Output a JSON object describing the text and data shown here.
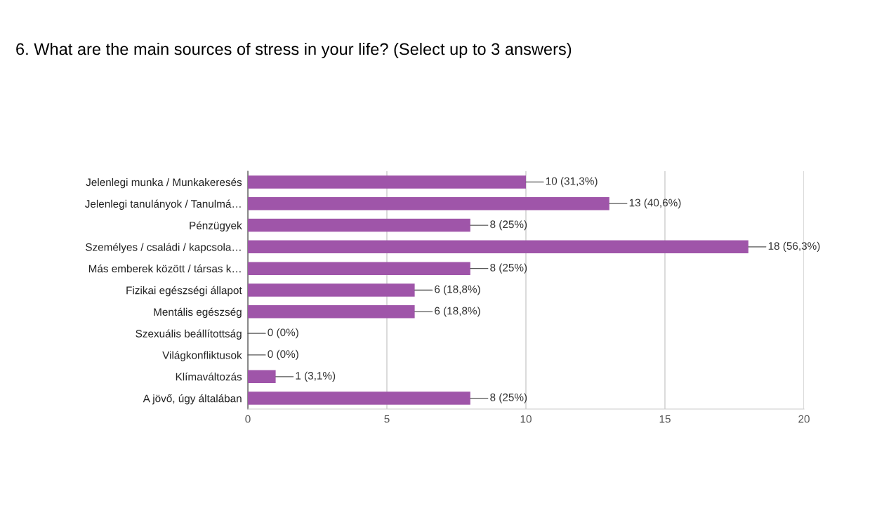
{
  "chart_data": {
    "type": "bar",
    "orientation": "horizontal",
    "title": "6. What are the main sources of stress in your life? (Select up to 3 answers)",
    "categories": [
      "Jelenlegi munka / Munkakeresés",
      "Jelenlegi tanulányok / Tanulmá…",
      "Pénzügyek",
      "Személyes / családi / kapcsola…",
      "Más emberek között / társas k…",
      "Fizikai egészségi állapot",
      "Mentális egészség",
      "Szexuális beállítottság",
      "Világkonfliktusok",
      "Klímaváltozás",
      "A jövő, úgy általában"
    ],
    "values": [
      10,
      13,
      8,
      18,
      8,
      6,
      6,
      0,
      0,
      1,
      8
    ],
    "value_labels": [
      "10 (31,3%)",
      "13 (40,6%)",
      "8 (25%)",
      "18 (56,3%)",
      "8 (25%)",
      "6 (18,8%)",
      "6 (18,8%)",
      "0 (0%)",
      "0 (0%)",
      "1 (3,1%)",
      "8 (25%)"
    ],
    "color": "#9f55a9",
    "xlim": [
      0,
      20
    ],
    "xticks": [
      0,
      5,
      10,
      15,
      20
    ],
    "grid": "x"
  }
}
